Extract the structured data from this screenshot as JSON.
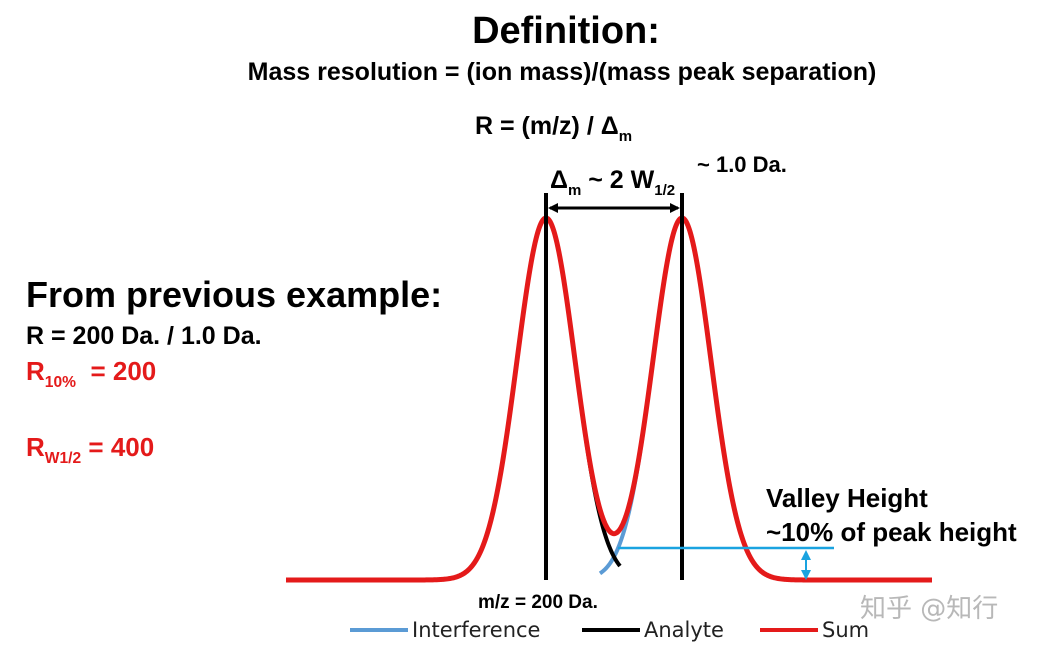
{
  "title": "Definition:",
  "subtitle": "Mass resolution = (ion mass)/(mass peak separation)",
  "formula": {
    "prefix": "R = (m/z) / ",
    "delta": "Δ",
    "sub": "m"
  },
  "separation_label": {
    "delta": "Δ",
    "delta_sub": "m",
    "mid": " ~ 2 W",
    "w_sub": "1/2"
  },
  "separation_value": "~ 1.0 Da.",
  "example": {
    "heading": "From previous example:",
    "r_calc": "R = 200 Da. / 1.0 Da.",
    "r10_main": "R",
    "r10_sub": "10%",
    "r10_value": "  = 200",
    "rw_main": "R",
    "rw_sub": "W1/2",
    "rw_value": " = 400"
  },
  "valley": {
    "line1": "Valley Height",
    "line2": "~10% of peak height"
  },
  "mz_label": "m/z = 200 Da.",
  "legend": [
    {
      "label": "Interference",
      "color": "#5b9bd5"
    },
    {
      "label": "Analyte",
      "color": "#000000"
    },
    {
      "label": "Sum",
      "color": "#e41a1a"
    }
  ],
  "watermark": "知乎 @知行",
  "colors": {
    "sum": "#e41a1a",
    "analyte": "#000000",
    "interference": "#5b9bd5",
    "valley_marker": "#1aa3e0",
    "red_text": "#e41a1a"
  }
}
